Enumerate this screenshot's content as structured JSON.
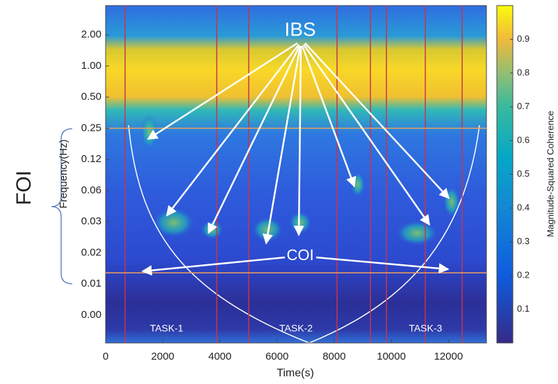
{
  "chart_data": {
    "type": "heatmap",
    "xlabel": "Time(s)",
    "ylabel": "Frequency(Hz)",
    "colorbar_label": "Magnitude-Squared Coherence",
    "xlim": [
      0,
      13330
    ],
    "xticks": [
      0,
      2000,
      4000,
      6000,
      8000,
      10000,
      12000
    ],
    "ylim": [
      0.0021,
      3.84
    ],
    "log_y": true,
    "yticks": [
      {
        "value": 2,
        "label": "2.00"
      },
      {
        "value": 1,
        "label": "1.00"
      },
      {
        "value": 0.5,
        "label": "0.50"
      },
      {
        "value": 0.25,
        "label": "0.25"
      },
      {
        "value": 0.125,
        "label": "0.12"
      },
      {
        "value": 0.0625,
        "label": "0.06"
      },
      {
        "value": 0.03125,
        "label": "0.03"
      },
      {
        "value": 0.015625,
        "label": "0.02"
      },
      {
        "value": 0.0078125,
        "label": "0.01"
      },
      {
        "value": 0.00390625,
        "label": "0.00"
      }
    ],
    "clim": [
      0,
      1
    ],
    "cticks": [
      0.1,
      0.2,
      0.3,
      0.4,
      0.5,
      0.6,
      0.7,
      0.8,
      0.9
    ],
    "hlines": {
      "values": [
        0.25,
        0.01
      ],
      "color": "#f0a060"
    },
    "vlines": {
      "values": [
        680,
        3890,
        5010,
        8100,
        9270,
        9830,
        11190,
        12480
      ],
      "color": "#c8344e"
    },
    "annotations": {
      "ibs": "IBS",
      "coi": "COI",
      "foi": "FOI"
    },
    "tasks": [
      "TASK-1",
      "TASK-2",
      "TASK-3"
    ]
  }
}
